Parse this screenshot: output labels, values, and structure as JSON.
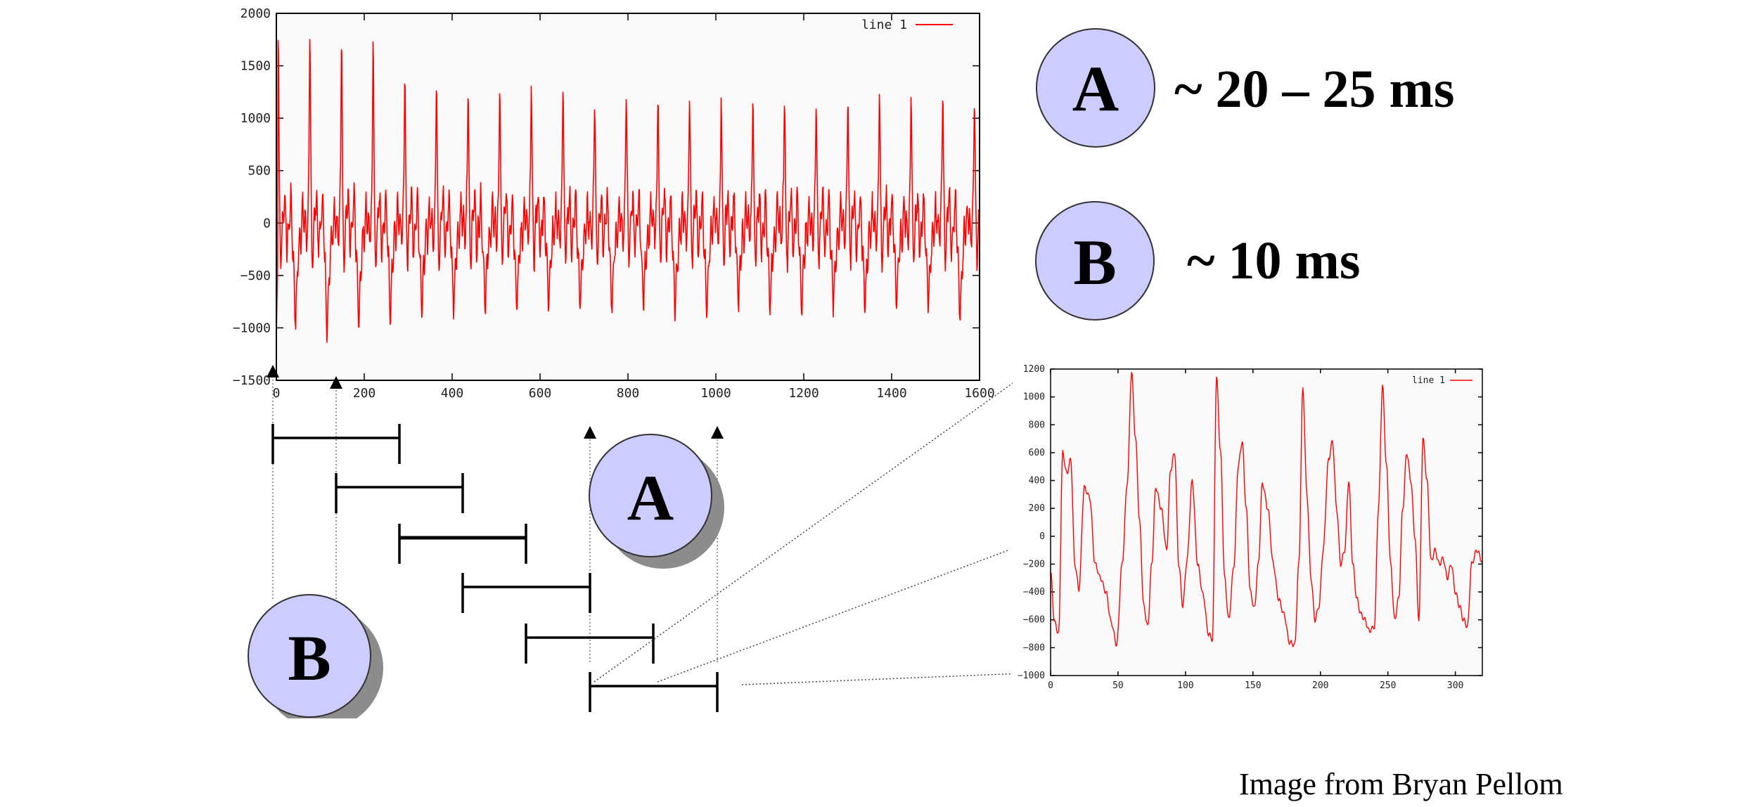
{
  "labels": {
    "a_letter": "A",
    "b_letter": "B",
    "a_text": "~ 20 – 25 ms",
    "b_text": "~ 10 ms",
    "credit": "Image from Bryan Pellom"
  },
  "colors": {
    "signal": "#ff0000",
    "bubble_fill": "#ccccff",
    "bubble_shadow": "#8c8c8c",
    "plot_bg": "#fafafa"
  },
  "chart_data": [
    {
      "type": "line",
      "title": "",
      "xlabel": "",
      "ylabel": "",
      "xlim": [
        0,
        1600
      ],
      "ylim": [
        -1500,
        2000
      ],
      "xticks": [
        0,
        200,
        400,
        600,
        800,
        1000,
        1200,
        1400,
        1600
      ],
      "yticks": [
        2000,
        1500,
        1000,
        500,
        0,
        -500,
        -1000,
        -1500
      ],
      "grid": false,
      "legend": "top-right",
      "series": [
        {
          "name": "line 1",
          "pitch_period_samples": 72,
          "peak_values": [
            1660,
            1600,
            1620,
            1580,
            1240,
            1150,
            1100,
            1080,
            1130,
            1100,
            1000,
            1080,
            1050,
            1020,
            1030,
            1000,
            1050,
            1000,
            1020,
            1100,
            1050,
            1040
          ],
          "trough_values": [
            -930,
            -1000,
            -950,
            -840,
            -780,
            -760,
            -750,
            -740,
            -720,
            -760,
            -770,
            -740,
            -780,
            -760,
            -740,
            -760,
            -760,
            -760,
            -780,
            -750,
            -760,
            -880
          ]
        }
      ]
    },
    {
      "type": "line",
      "title": "",
      "xlabel": "",
      "ylabel": "",
      "xlim": [
        0,
        320
      ],
      "ylim": [
        -1000,
        1200
      ],
      "xticks": [
        0,
        50,
        100,
        150,
        200,
        250,
        300
      ],
      "yticks": [
        1200,
        1000,
        800,
        600,
        400,
        200,
        0,
        -200,
        -400,
        -600,
        -800,
        -1000
      ],
      "grid": false,
      "legend": "top-right",
      "series": [
        {
          "name": "line 1",
          "x": [
            0,
            3,
            6,
            9,
            12,
            15,
            18,
            21,
            25,
            29,
            33,
            37,
            41,
            45,
            49,
            53,
            57,
            60,
            63,
            66,
            69,
            72,
            75,
            78,
            82,
            86,
            89,
            92,
            95,
            98,
            101,
            105,
            109,
            113,
            117,
            120,
            123,
            126,
            129,
            132,
            136,
            139,
            142,
            145,
            148,
            151,
            154,
            157,
            161,
            165,
            169,
            173,
            177,
            181,
            184,
            187,
            190,
            193,
            196,
            199,
            202,
            206,
            209,
            212,
            215,
            218,
            221,
            224,
            227,
            230,
            233,
            236,
            240,
            243,
            246,
            249,
            252,
            255,
            258,
            261,
            264,
            267,
            270,
            273,
            276,
            279,
            282,
            285,
            288,
            291,
            294,
            297,
            300,
            303,
            306,
            309,
            312,
            316,
            320
          ],
          "y": [
            -260,
            -620,
            -700,
            600,
            450,
            550,
            -200,
            -380,
            350,
            280,
            -200,
            -300,
            -400,
            -620,
            -780,
            -200,
            400,
            1180,
            700,
            100,
            -500,
            -650,
            -200,
            350,
            200,
            -100,
            480,
            600,
            -200,
            -500,
            -180,
            400,
            -200,
            -420,
            -700,
            -740,
            1140,
            600,
            -300,
            -600,
            -200,
            500,
            680,
            200,
            -400,
            -520,
            -200,
            380,
            200,
            -200,
            -450,
            -560,
            -760,
            -780,
            -200,
            1060,
            300,
            -300,
            -600,
            -500,
            -100,
            550,
            680,
            200,
            -200,
            -100,
            400,
            -200,
            -450,
            -560,
            -600,
            -680,
            -650,
            200,
            1080,
            500,
            -200,
            -600,
            -450,
            200,
            600,
            400,
            0,
            -600,
            700,
            400,
            -180,
            -100,
            -200,
            -160,
            -300,
            -200,
            -400,
            -500,
            -600,
            -650,
            -200,
            -100,
            -180
          ]
        }
      ]
    }
  ]
}
